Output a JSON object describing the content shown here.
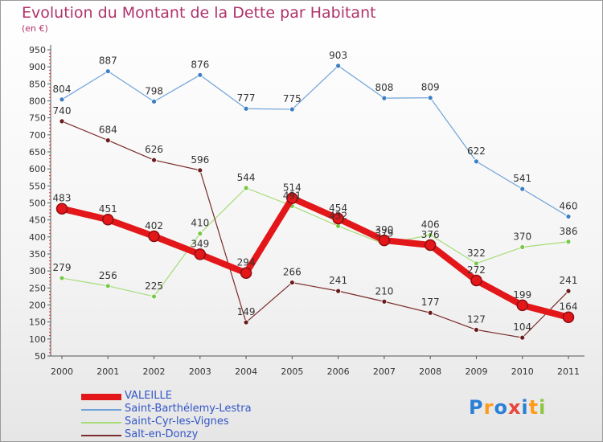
{
  "title": "Evolution du Montant de la Dette par Habitant",
  "subtitle": "(en €)",
  "logo": [
    "P",
    "r",
    "o",
    "x",
    "i",
    "t",
    "i"
  ],
  "logo_colors": [
    "#2b7fd6",
    "#ff9b1a",
    "#2b7fd6",
    "#e8453c",
    "#2b7fd6",
    "#ff9b1a",
    "#8dc63f"
  ],
  "chart_data": {
    "type": "line",
    "x": [
      "2000",
      "2001",
      "2002",
      "2003",
      "2004",
      "2005",
      "2006",
      "2007",
      "2008",
      "2009",
      "2010",
      "2011"
    ],
    "ylim": [
      50,
      950
    ],
    "yticks": [
      50,
      100,
      150,
      200,
      250,
      300,
      350,
      400,
      450,
      500,
      550,
      600,
      650,
      700,
      750,
      800,
      850,
      900,
      950
    ],
    "grid": false,
    "legend_position": "bottom-left",
    "series": [
      {
        "name": "VALEILLE",
        "color": "#e3171a",
        "marker": "#7a1010",
        "width": 8,
        "values": [
          483,
          451,
          402,
          349,
          294,
          514,
          454,
          390,
          376,
          272,
          199,
          164
        ],
        "labels": [
          "483",
          "451",
          "402",
          "349",
          "294",
          "514",
          "454",
          "390",
          "376",
          "272",
          "199",
          "164"
        ]
      },
      {
        "name": "Saint-Barthélemy-Lestra",
        "color": "#6fa3d8",
        "marker": "#3d7fc4",
        "width": 1.2,
        "values": [
          804,
          887,
          798,
          876,
          777,
          775,
          903,
          808,
          809,
          622,
          541,
          460
        ],
        "labels": [
          "804",
          "887",
          "798",
          "876",
          "777",
          "775",
          "903",
          "808",
          "809",
          "622",
          "541",
          "460"
        ]
      },
      {
        "name": "Saint-Cyr-les-Vignes",
        "color": "#a6dc78",
        "marker": "#77c94a",
        "width": 1.2,
        "values": [
          279,
          256,
          225,
          410,
          544,
          491,
          432,
          379,
          406,
          322,
          370,
          386
        ],
        "labels": [
          "279",
          "256",
          "225",
          "410",
          "544",
          "491",
          "432",
          "379",
          "406",
          "322",
          "370",
          "386"
        ]
      },
      {
        "name": "Salt-en-Donzy",
        "color": "#7a2b2b",
        "marker": "#6a1c1c",
        "width": 1.2,
        "values": [
          740,
          684,
          626,
          596,
          149,
          266,
          241,
          210,
          177,
          127,
          104,
          241
        ],
        "labels": [
          "740",
          "684",
          "626",
          "596",
          "149",
          "266",
          "241",
          "210",
          "177",
          "127",
          "104",
          "241"
        ]
      }
    ]
  }
}
